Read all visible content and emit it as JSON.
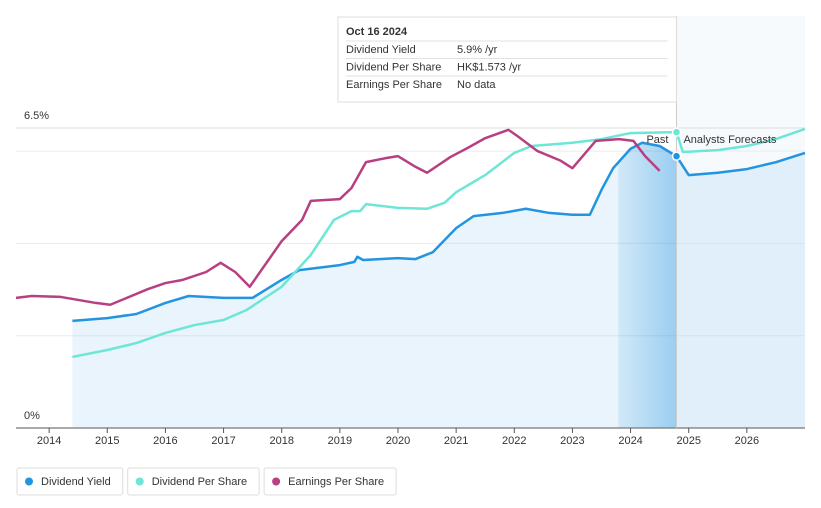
{
  "chart_data": {
    "type": "line",
    "xlim": [
      2013.43,
      2027.0
    ],
    "xticks": [
      2014,
      2015,
      2016,
      2017,
      2018,
      2019,
      2020,
      2021,
      2022,
      2023,
      2024,
      2025,
      2026
    ],
    "ylim": [
      0,
      6.5
    ],
    "yticks": [
      {
        "value": 0,
        "label": "0%"
      },
      {
        "value": 6.5,
        "label": "6.5%"
      }
    ],
    "grid_lines": [
      2,
      4,
      6
    ],
    "annotations": {
      "past": "Past",
      "forecast": "Analysts Forecasts"
    },
    "series": [
      {
        "name": "Dividend Yield",
        "color": "#2394df",
        "x": [
          2014.4,
          2015,
          2015.5,
          2016,
          2016.4,
          2017,
          2017.5,
          2018,
          2018.3,
          2019,
          2019.25,
          2019.3,
          2019.4,
          2020,
          2020.3,
          2020.6,
          2021,
          2021.3,
          2021.8,
          2022.2,
          2022.6,
          2023,
          2023.3,
          2023.5,
          2023.7,
          2024,
          2024.2,
          2024.5,
          2024.79,
          2025,
          2025.5,
          2026,
          2026.5,
          2027
        ],
        "values": [
          2.32,
          2.38,
          2.47,
          2.71,
          2.86,
          2.82,
          2.82,
          3.21,
          3.42,
          3.53,
          3.6,
          3.71,
          3.64,
          3.68,
          3.66,
          3.81,
          4.33,
          4.59,
          4.66,
          4.75,
          4.66,
          4.62,
          4.62,
          5.16,
          5.63,
          6.05,
          6.18,
          6.11,
          5.89,
          5.48,
          5.53,
          5.61,
          5.76,
          5.96
        ]
      },
      {
        "name": "Dividend Per Share",
        "color": "#6ee6d6",
        "x": [
          2014.4,
          2015,
          2015.5,
          2016,
          2016.5,
          2017,
          2017.4,
          2018,
          2018.5,
          2018.9,
          2019.2,
          2019.35,
          2019.45,
          2020,
          2020.5,
          2020.8,
          2021,
          2021.5,
          2022,
          2022.3,
          2023,
          2023.5,
          2024,
          2024.79,
          2024.9,
          2025.5,
          2026,
          2026.5,
          2027
        ],
        "values": [
          1.54,
          1.69,
          1.84,
          2.06,
          2.23,
          2.34,
          2.56,
          3.06,
          3.75,
          4.51,
          4.7,
          4.7,
          4.85,
          4.77,
          4.75,
          4.88,
          5.11,
          5.48,
          5.96,
          6.11,
          6.18,
          6.26,
          6.39,
          6.41,
          5.98,
          6.02,
          6.11,
          6.26,
          6.48
        ]
      },
      {
        "name": "Earnings Per Share",
        "color": "#b83f82",
        "x": [
          2013.43,
          2013.7,
          2014.2,
          2014.8,
          2015.05,
          2015.3,
          2015.7,
          2016,
          2016.3,
          2016.7,
          2016.95,
          2017.2,
          2017.45,
          2017.65,
          2018,
          2018.35,
          2018.5,
          2019,
          2019.2,
          2019.45,
          2019.8,
          2020,
          2020.3,
          2020.5,
          2020.9,
          2021.2,
          2021.5,
          2021.9,
          2022.05,
          2022.4,
          2022.8,
          2023,
          2023.4,
          2023.8,
          2024.05,
          2024.25,
          2024.5
        ],
        "values": [
          2.82,
          2.86,
          2.84,
          2.71,
          2.67,
          2.8,
          3.01,
          3.14,
          3.21,
          3.38,
          3.58,
          3.38,
          3.06,
          3.42,
          4.05,
          4.51,
          4.92,
          4.96,
          5.2,
          5.76,
          5.85,
          5.89,
          5.66,
          5.53,
          5.87,
          6.07,
          6.28,
          6.46,
          6.33,
          6.0,
          5.79,
          5.63,
          6.22,
          6.26,
          6.22,
          5.89,
          5.57
        ]
      }
    ]
  },
  "tooltip": {
    "date": "Oct 16 2024",
    "rows": [
      {
        "label": "Dividend Yield",
        "value": "5.9%",
        "unit": "/yr",
        "color": "#2394df"
      },
      {
        "label": "Dividend Per Share",
        "value": "HK$1.573",
        "unit": "/yr",
        "color": "#6ee6d6"
      },
      {
        "label": "Earnings Per Share",
        "value": "No data",
        "color": "#b8b8b8"
      }
    ]
  }
}
